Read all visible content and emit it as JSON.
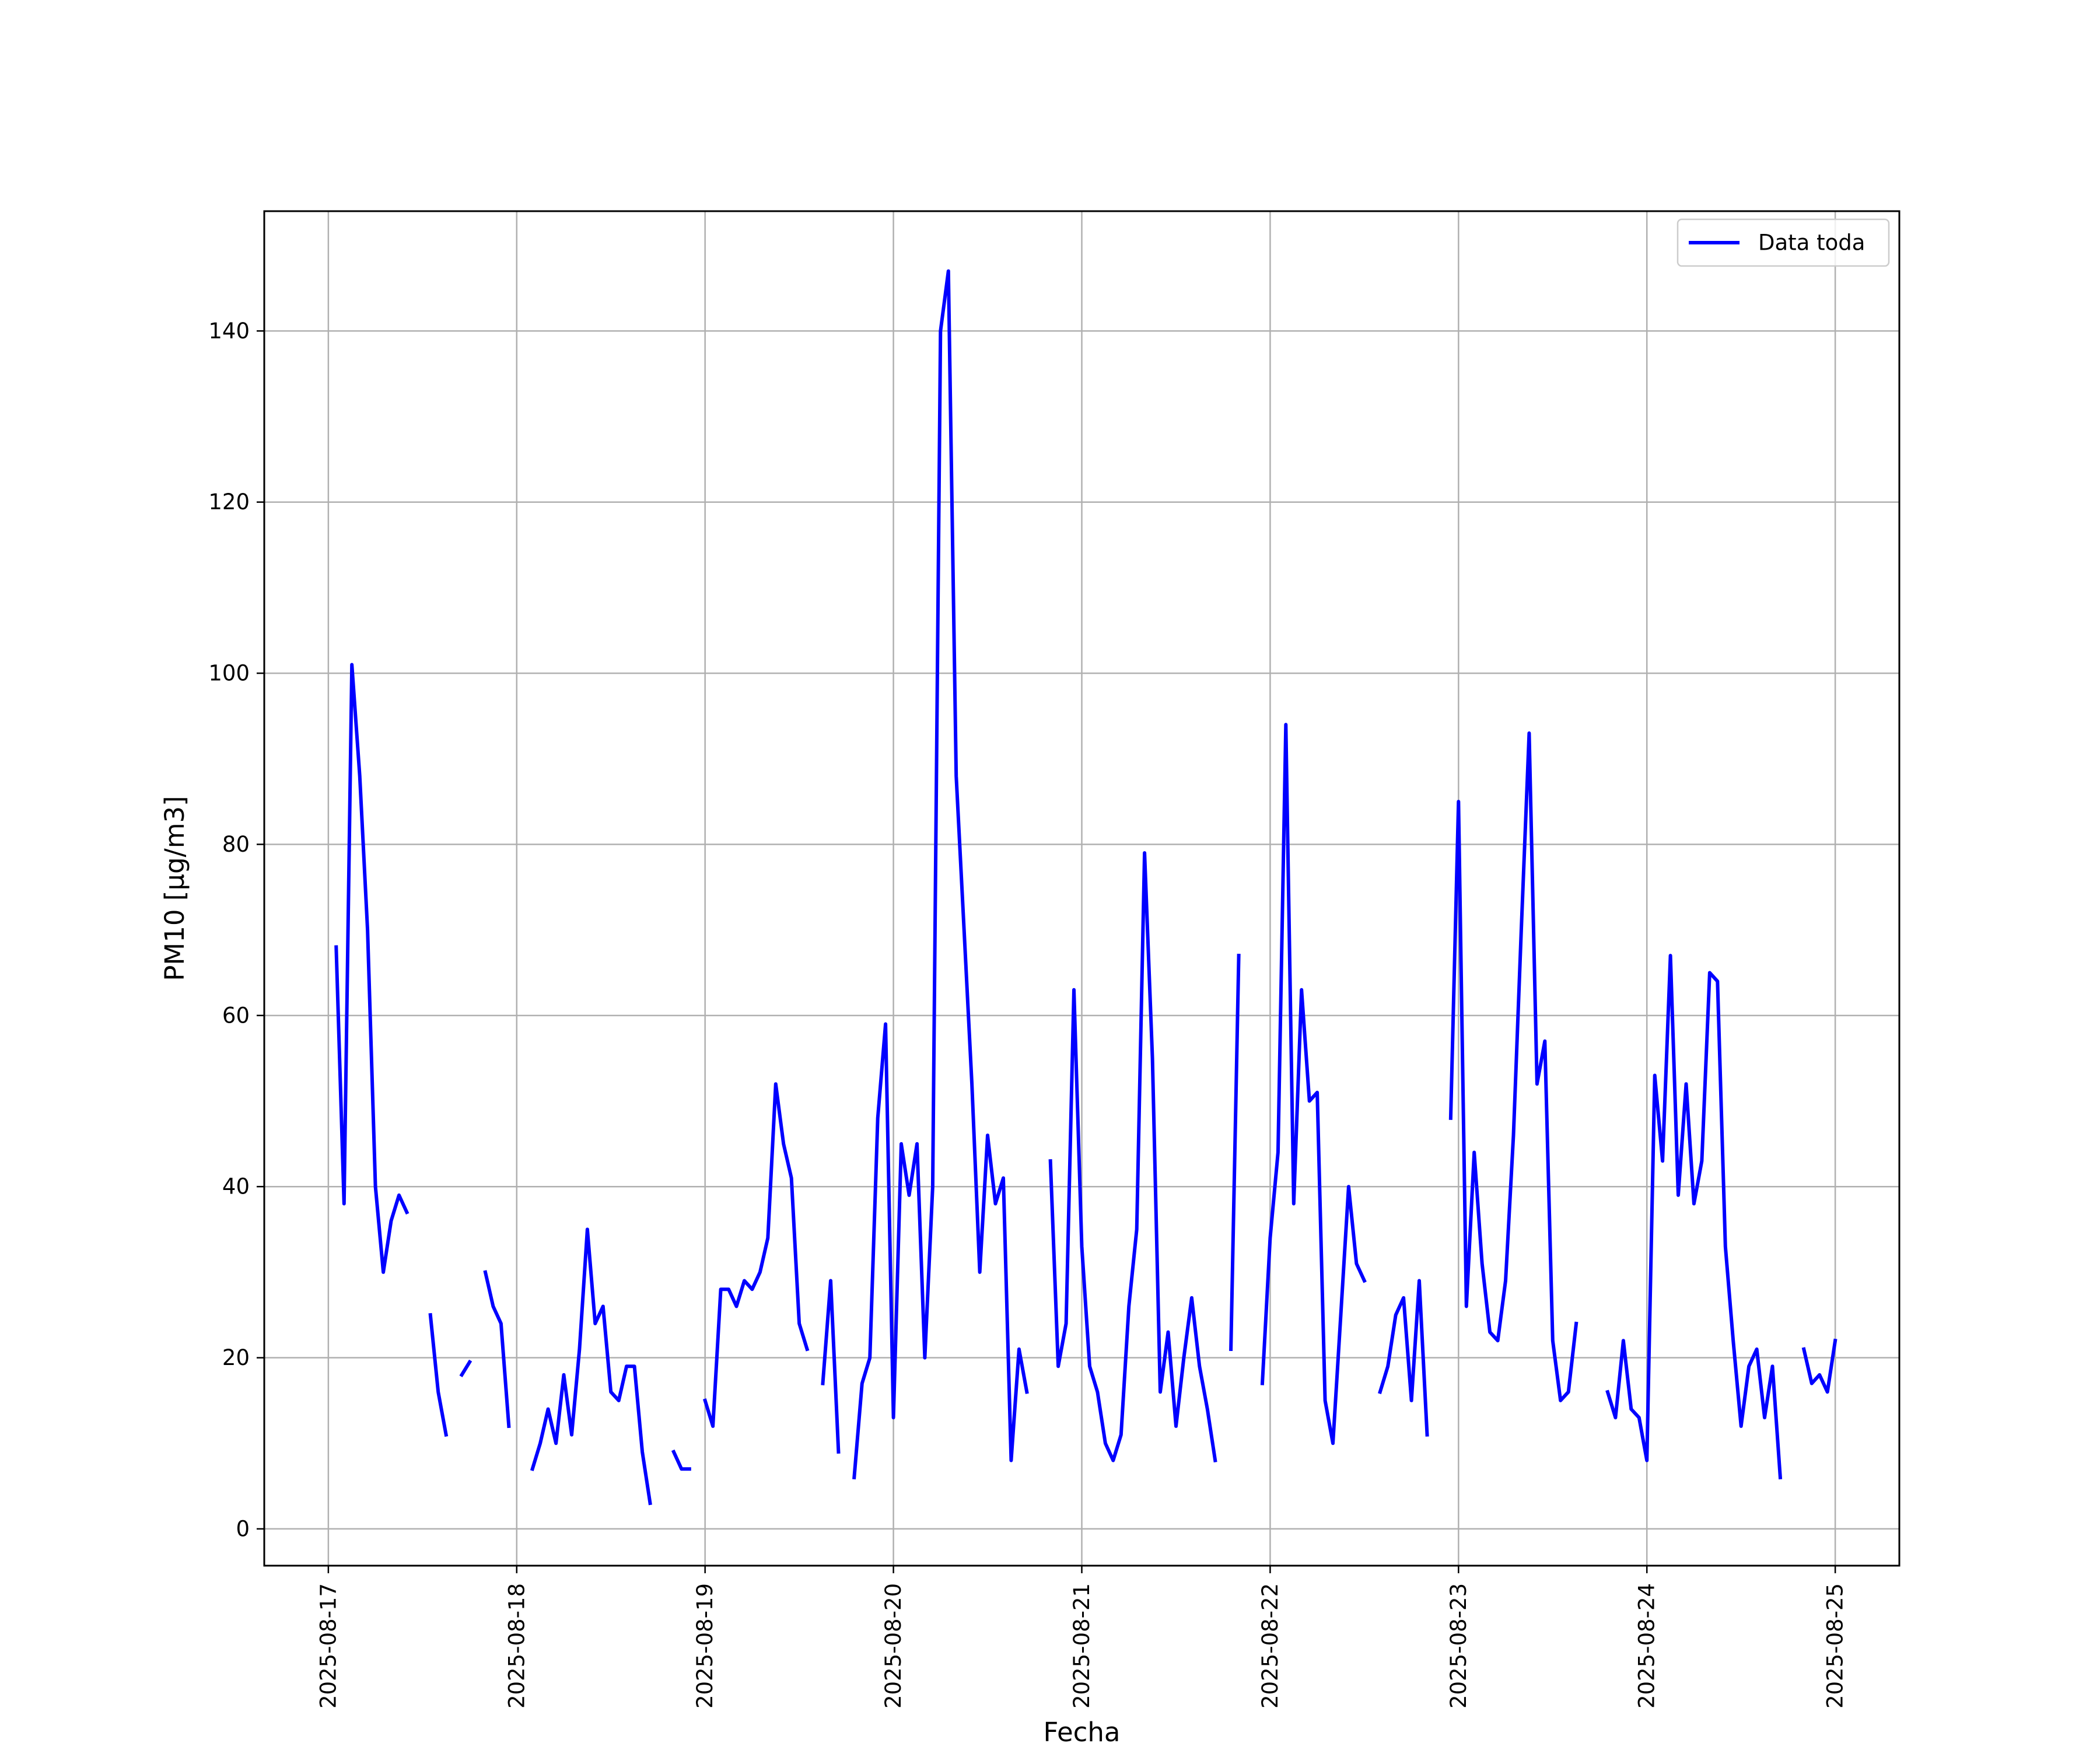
{
  "chart_data": {
    "type": "line",
    "xlabel": "Fecha",
    "ylabel": "PM10 [μg/m3]",
    "xlim": [
      "2025-08-16T15:50",
      "2025-08-25T08:10"
    ],
    "ylim": [
      -4.3,
      154
    ],
    "x_ticks": [
      "2025-08-17",
      "2025-08-18",
      "2025-08-19",
      "2025-08-20",
      "2025-08-21",
      "2025-08-22",
      "2025-08-23",
      "2025-08-24",
      "2025-08-25"
    ],
    "y_ticks": [
      0,
      20,
      40,
      60,
      80,
      100,
      120,
      140
    ],
    "grid": true,
    "legend_position": "top-right",
    "colors": {
      "series": "#0000ff",
      "grid": "#b0b0b0",
      "frame": "#000000"
    },
    "series": [
      {
        "name": "Data toda",
        "segments": [
          [
            [
              "2025-08-17T01:00",
              68
            ],
            [
              "2025-08-17T02:00",
              38
            ],
            [
              "2025-08-17T03:00",
              101
            ],
            [
              "2025-08-17T04:00",
              88
            ],
            [
              "2025-08-17T05:00",
              70
            ],
            [
              "2025-08-17T06:00",
              40
            ],
            [
              "2025-08-17T07:00",
              30
            ],
            [
              "2025-08-17T08:00",
              36
            ],
            [
              "2025-08-17T09:00",
              39
            ],
            [
              "2025-08-17T10:00",
              37
            ]
          ],
          [
            [
              "2025-08-17T13:00",
              25
            ],
            [
              "2025-08-17T14:00",
              16
            ],
            [
              "2025-08-17T15:00",
              11
            ]
          ],
          [
            [
              "2025-08-17T17:00",
              18
            ],
            [
              "2025-08-17T18:00",
              19.5
            ]
          ],
          [
            [
              "2025-08-17T20:00",
              30
            ],
            [
              "2025-08-17T21:00",
              26
            ],
            [
              "2025-08-17T22:00",
              24
            ],
            [
              "2025-08-17T23:00",
              12
            ]
          ],
          [
            [
              "2025-08-18T02:00",
              7
            ],
            [
              "2025-08-18T03:00",
              10
            ],
            [
              "2025-08-18T04:00",
              14
            ],
            [
              "2025-08-18T05:00",
              10
            ],
            [
              "2025-08-18T06:00",
              18
            ],
            [
              "2025-08-18T07:00",
              11
            ],
            [
              "2025-08-18T08:00",
              21
            ],
            [
              "2025-08-18T09:00",
              35
            ],
            [
              "2025-08-18T10:00",
              24
            ],
            [
              "2025-08-18T11:00",
              26
            ],
            [
              "2025-08-18T12:00",
              16
            ],
            [
              "2025-08-18T13:00",
              15
            ],
            [
              "2025-08-18T14:00",
              19
            ],
            [
              "2025-08-18T15:00",
              19
            ],
            [
              "2025-08-18T16:00",
              9
            ],
            [
              "2025-08-18T17:00",
              3
            ]
          ],
          [
            [
              "2025-08-18T20:00",
              9
            ],
            [
              "2025-08-18T21:00",
              7
            ],
            [
              "2025-08-18T22:00",
              7
            ]
          ],
          [
            [
              "2025-08-19T00:00",
              15
            ],
            [
              "2025-08-19T01:00",
              12
            ],
            [
              "2025-08-19T02:00",
              28
            ],
            [
              "2025-08-19T03:00",
              28
            ],
            [
              "2025-08-19T04:00",
              26
            ],
            [
              "2025-08-19T05:00",
              29
            ],
            [
              "2025-08-19T06:00",
              28
            ],
            [
              "2025-08-19T07:00",
              30
            ],
            [
              "2025-08-19T08:00",
              34
            ],
            [
              "2025-08-19T09:00",
              52
            ],
            [
              "2025-08-19T10:00",
              45
            ],
            [
              "2025-08-19T11:00",
              41
            ],
            [
              "2025-08-19T12:00",
              24
            ],
            [
              "2025-08-19T13:00",
              21
            ]
          ],
          [
            [
              "2025-08-19T15:00",
              17
            ],
            [
              "2025-08-19T16:00",
              29
            ],
            [
              "2025-08-19T17:00",
              9
            ]
          ],
          [
            [
              "2025-08-19T19:00",
              6
            ],
            [
              "2025-08-19T20:00",
              17
            ],
            [
              "2025-08-19T21:00",
              20
            ],
            [
              "2025-08-19T22:00",
              48
            ],
            [
              "2025-08-19T23:00",
              59
            ],
            [
              "2025-08-20T00:00",
              13
            ],
            [
              "2025-08-20T01:00",
              45
            ],
            [
              "2025-08-20T02:00",
              39
            ],
            [
              "2025-08-20T03:00",
              45
            ],
            [
              "2025-08-20T04:00",
              20
            ],
            [
              "2025-08-20T05:00",
              40
            ],
            [
              "2025-08-20T06:00",
              140
            ],
            [
              "2025-08-20T07:00",
              147
            ],
            [
              "2025-08-20T08:00",
              88
            ],
            [
              "2025-08-20T09:00",
              70
            ],
            [
              "2025-08-20T10:00",
              52
            ],
            [
              "2025-08-20T11:00",
              30
            ],
            [
              "2025-08-20T12:00",
              46
            ],
            [
              "2025-08-20T13:00",
              38
            ],
            [
              "2025-08-20T14:00",
              41
            ],
            [
              "2025-08-20T15:00",
              8
            ],
            [
              "2025-08-20T16:00",
              21
            ],
            [
              "2025-08-20T17:00",
              16
            ]
          ],
          [
            [
              "2025-08-20T20:00",
              43
            ],
            [
              "2025-08-20T21:00",
              19
            ],
            [
              "2025-08-20T22:00",
              24
            ],
            [
              "2025-08-20T23:00",
              63
            ],
            [
              "2025-08-21T00:00",
              33
            ],
            [
              "2025-08-21T01:00",
              19
            ],
            [
              "2025-08-21T02:00",
              16
            ],
            [
              "2025-08-21T03:00",
              10
            ],
            [
              "2025-08-21T04:00",
              8
            ],
            [
              "2025-08-21T05:00",
              11
            ],
            [
              "2025-08-21T06:00",
              26
            ],
            [
              "2025-08-21T07:00",
              35
            ],
            [
              "2025-08-21T08:00",
              79
            ],
            [
              "2025-08-21T09:00",
              55
            ],
            [
              "2025-08-21T10:00",
              16
            ],
            [
              "2025-08-21T11:00",
              23
            ],
            [
              "2025-08-21T12:00",
              12
            ],
            [
              "2025-08-21T13:00",
              20
            ],
            [
              "2025-08-21T14:00",
              27
            ],
            [
              "2025-08-21T15:00",
              19
            ],
            [
              "2025-08-21T16:00",
              14
            ],
            [
              "2025-08-21T17:00",
              8
            ]
          ],
          [
            [
              "2025-08-21T19:00",
              21
            ],
            [
              "2025-08-21T20:00",
              67
            ]
          ],
          [
            [
              "2025-08-21T23:00",
              17
            ],
            [
              "2025-08-22T00:00",
              34
            ],
            [
              "2025-08-22T01:00",
              44
            ],
            [
              "2025-08-22T02:00",
              94
            ],
            [
              "2025-08-22T03:00",
              38
            ],
            [
              "2025-08-22T04:00",
              63
            ],
            [
              "2025-08-22T05:00",
              50
            ],
            [
              "2025-08-22T06:00",
              51
            ],
            [
              "2025-08-22T07:00",
              15
            ],
            [
              "2025-08-22T08:00",
              10
            ],
            [
              "2025-08-22T09:00",
              25
            ],
            [
              "2025-08-22T10:00",
              40
            ],
            [
              "2025-08-22T11:00",
              31
            ],
            [
              "2025-08-22T12:00",
              29
            ]
          ],
          [
            [
              "2025-08-22T14:00",
              16
            ],
            [
              "2025-08-22T15:00",
              19
            ],
            [
              "2025-08-22T16:00",
              25
            ],
            [
              "2025-08-22T17:00",
              27
            ],
            [
              "2025-08-22T18:00",
              15
            ],
            [
              "2025-08-22T19:00",
              29
            ],
            [
              "2025-08-22T20:00",
              11
            ]
          ],
          [
            [
              "2025-08-22T23:00",
              48
            ],
            [
              "2025-08-23T00:00",
              85
            ],
            [
              "2025-08-23T01:00",
              26
            ],
            [
              "2025-08-23T02:00",
              44
            ],
            [
              "2025-08-23T03:00",
              31
            ],
            [
              "2025-08-23T04:00",
              23
            ],
            [
              "2025-08-23T05:00",
              22
            ],
            [
              "2025-08-23T06:00",
              29
            ],
            [
              "2025-08-23T07:00",
              46
            ],
            [
              "2025-08-23T08:00",
              70
            ],
            [
              "2025-08-23T09:00",
              93
            ],
            [
              "2025-08-23T10:00",
              52
            ],
            [
              "2025-08-23T11:00",
              57
            ],
            [
              "2025-08-23T12:00",
              22
            ],
            [
              "2025-08-23T13:00",
              15
            ],
            [
              "2025-08-23T14:00",
              16
            ],
            [
              "2025-08-23T15:00",
              24
            ]
          ],
          [
            [
              "2025-08-23T19:00",
              16
            ],
            [
              "2025-08-23T20:00",
              13
            ],
            [
              "2025-08-23T21:00",
              22
            ],
            [
              "2025-08-23T22:00",
              14
            ],
            [
              "2025-08-23T23:00",
              13
            ],
            [
              "2025-08-24T00:00",
              8
            ],
            [
              "2025-08-24T01:00",
              53
            ],
            [
              "2025-08-24T02:00",
              43
            ],
            [
              "2025-08-24T03:00",
              67
            ],
            [
              "2025-08-24T04:00",
              39
            ],
            [
              "2025-08-24T05:00",
              52
            ],
            [
              "2025-08-24T06:00",
              38
            ],
            [
              "2025-08-24T07:00",
              43
            ],
            [
              "2025-08-24T08:00",
              65
            ],
            [
              "2025-08-24T09:00",
              64
            ],
            [
              "2025-08-24T10:00",
              33
            ],
            [
              "2025-08-24T11:00",
              22
            ],
            [
              "2025-08-24T12:00",
              12
            ],
            [
              "2025-08-24T13:00",
              19
            ],
            [
              "2025-08-24T14:00",
              21
            ],
            [
              "2025-08-24T15:00",
              13
            ],
            [
              "2025-08-24T16:00",
              19
            ],
            [
              "2025-08-24T17:00",
              6
            ]
          ],
          [
            [
              "2025-08-24T20:00",
              21
            ],
            [
              "2025-08-24T21:00",
              17
            ],
            [
              "2025-08-24T22:00",
              18
            ],
            [
              "2025-08-24T23:00",
              16
            ],
            [
              "2025-08-25T00:00",
              22
            ]
          ]
        ]
      }
    ]
  }
}
